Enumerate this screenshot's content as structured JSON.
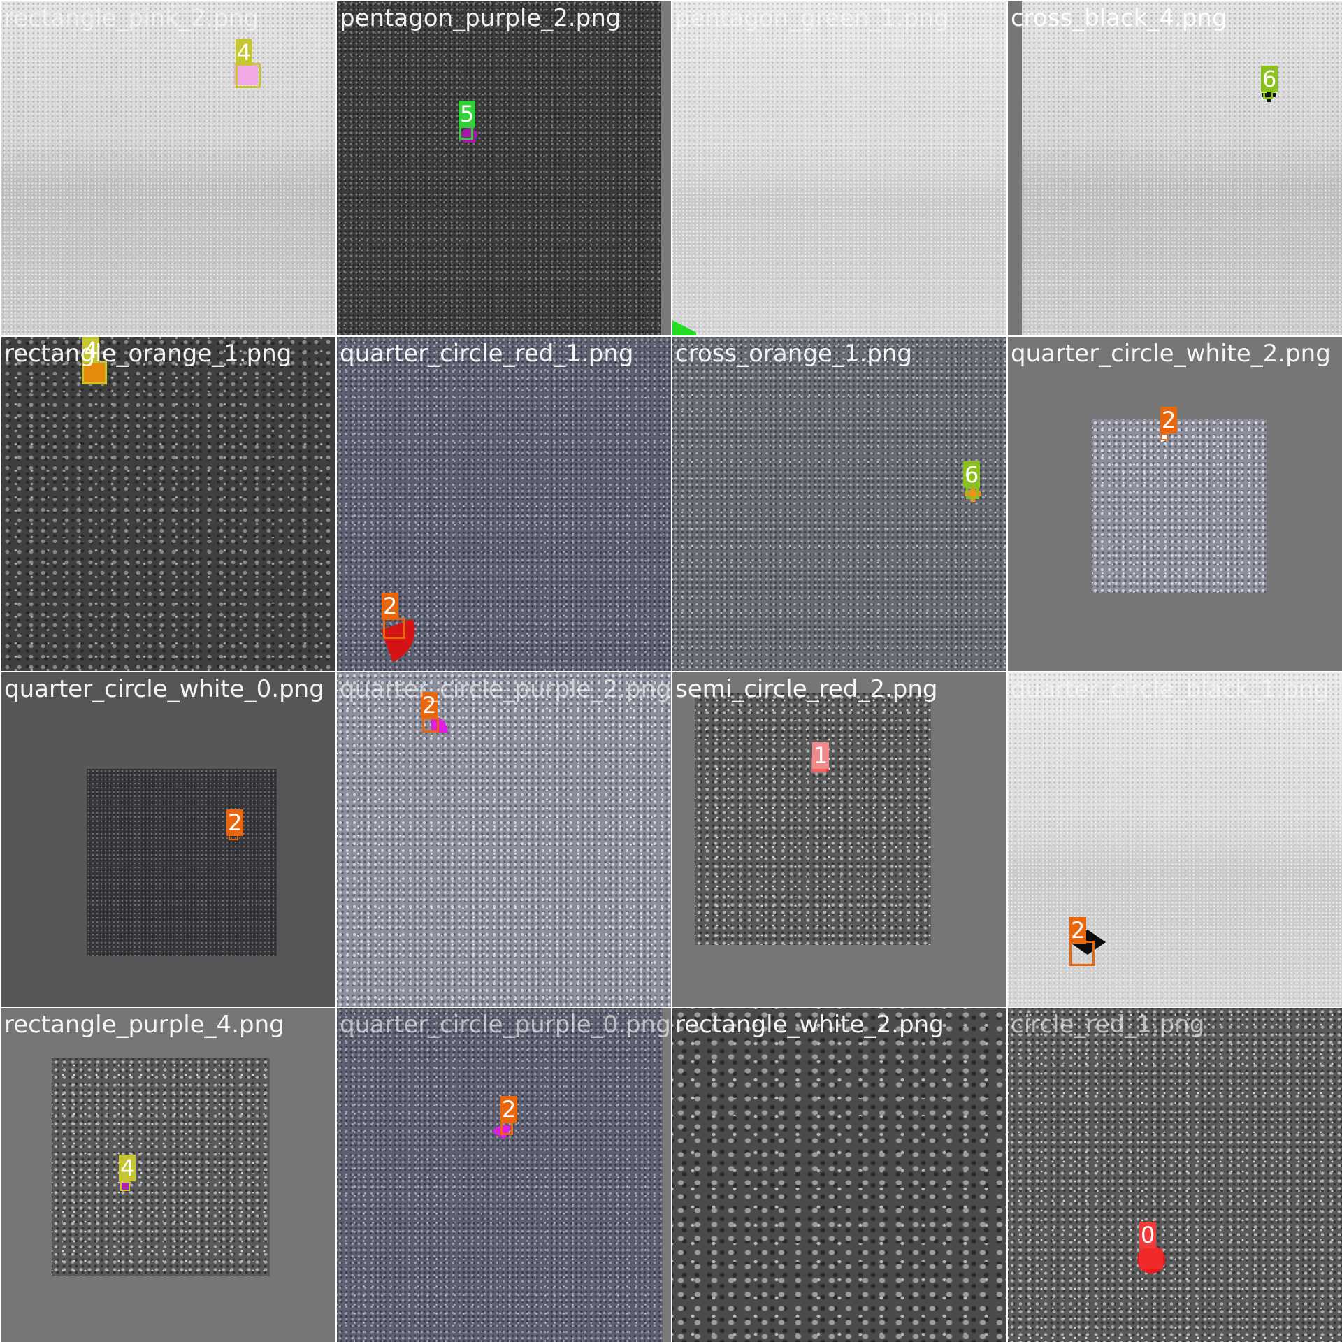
{
  "tiles": [
    {
      "filename": "rectangle_pink_2.png",
      "detections": [
        {
          "class_id": "4",
          "color": "#c6c630"
        }
      ]
    },
    {
      "filename": "pentagon_purple_2.png",
      "detections": [
        {
          "class_id": "5",
          "color": "#34d03c"
        }
      ]
    },
    {
      "filename": "pentagon_green_1.png",
      "detections": []
    },
    {
      "filename": "cross_black_4.png",
      "detections": [
        {
          "class_id": "6",
          "color": "#8bc11d"
        }
      ]
    },
    {
      "filename": "rectangle_orange_1.png",
      "detections": [
        {
          "class_id": "4",
          "color": "#c6c630"
        }
      ]
    },
    {
      "filename": "quarter_circle_red_1.png",
      "detections": [
        {
          "class_id": "2",
          "color": "#e8670e"
        }
      ]
    },
    {
      "filename": "cross_orange_1.png",
      "detections": [
        {
          "class_id": "6",
          "color": "#8bc11d"
        }
      ]
    },
    {
      "filename": "quarter_circle_white_2.png",
      "detections": [
        {
          "class_id": "2",
          "color": "#e8670e"
        }
      ]
    },
    {
      "filename": "quarter_circle_white_0.png",
      "detections": [
        {
          "class_id": "2",
          "color": "#e8670e"
        }
      ]
    },
    {
      "filename": "quarter_circle_purple_2.png",
      "detections": [
        {
          "class_id": "2",
          "color": "#e8670e"
        }
      ]
    },
    {
      "filename": "semi_circle_red_2.png",
      "detections": [
        {
          "class_id": "1",
          "color": "#f08a8a"
        }
      ]
    },
    {
      "filename": "quarter_circle_black_1.png",
      "detections": [
        {
          "class_id": "2",
          "color": "#e8670e"
        }
      ]
    },
    {
      "filename": "rectangle_purple_4.png",
      "detections": [
        {
          "class_id": "4",
          "color": "#c6c630"
        }
      ]
    },
    {
      "filename": "quarter_circle_purple_0.png",
      "detections": [
        {
          "class_id": "2",
          "color": "#e8670e"
        }
      ]
    },
    {
      "filename": "rectangle_white_2.png",
      "detections": []
    },
    {
      "filename": "circle_red_1.png",
      "detections": [
        {
          "class_id": "0",
          "color": "#f03b3b"
        }
      ]
    }
  ]
}
